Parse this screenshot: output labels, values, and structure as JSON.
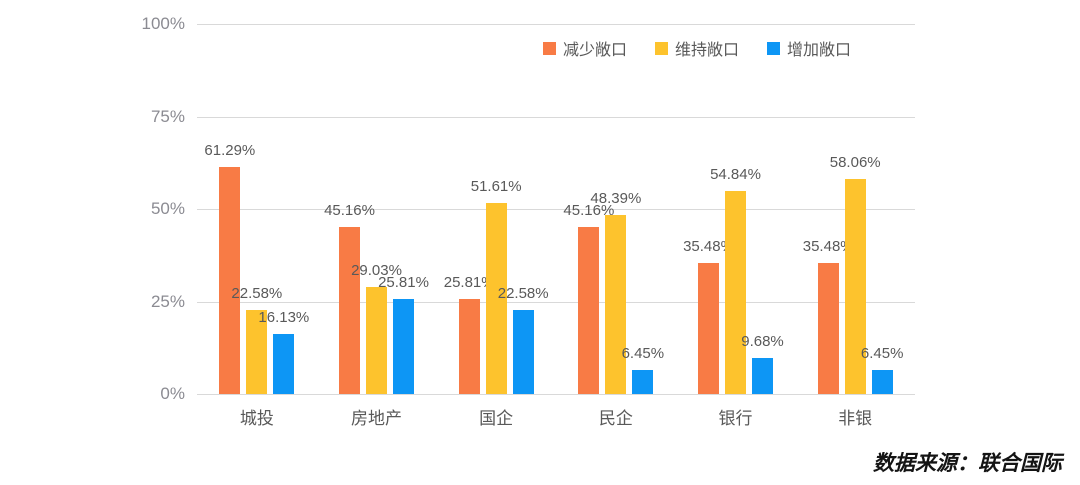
{
  "chart_data": {
    "type": "bar",
    "title": "",
    "xlabel": "",
    "ylabel": "",
    "ylim": [
      0,
      100
    ],
    "yticks": [
      "0%",
      "25%",
      "50%",
      "75%",
      "100%"
    ],
    "grid": true,
    "legend_position": "top-right",
    "value_label_suffix": "%",
    "categories": [
      "城投",
      "房地产",
      "国企",
      "民企",
      "银行",
      "非银"
    ],
    "series": [
      {
        "name": "减少敞口",
        "color": "#F87B45",
        "values": [
          61.29,
          45.16,
          25.81,
          45.16,
          35.48,
          35.48
        ]
      },
      {
        "name": "维持敞口",
        "color": "#FDC32D",
        "values": [
          22.58,
          29.03,
          51.61,
          48.39,
          54.84,
          58.06
        ]
      },
      {
        "name": "增加敞口",
        "color": "#0D96F5",
        "values": [
          16.13,
          25.81,
          22.58,
          6.45,
          9.68,
          6.45
        ]
      }
    ]
  },
  "footer": {
    "source_label": "数据来源：联合国际"
  },
  "colors": {
    "gridline": "#d9d9d9",
    "tick_label": "#8b8b92",
    "value_label": "#595959",
    "category_label": "#595959"
  }
}
